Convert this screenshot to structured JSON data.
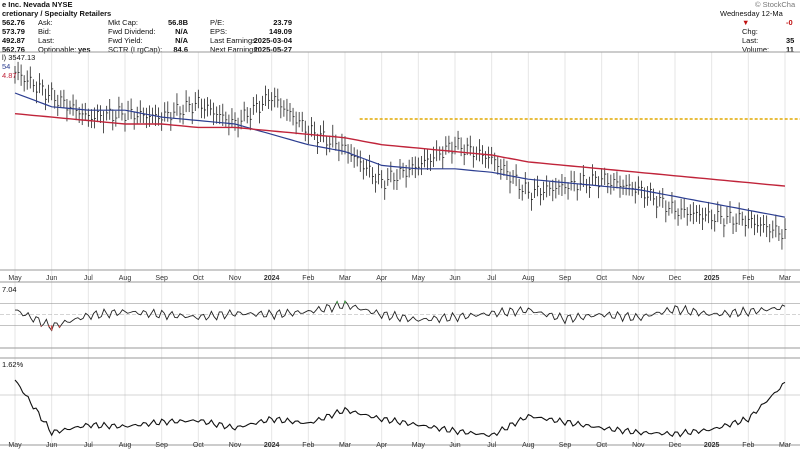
{
  "header": {
    "company_line": "e Inc.  Nevada  NYSE",
    "sector_line": "cretionary / Specialty Retailers",
    "left_values": [
      "562.76",
      "573.79",
      "492.87",
      "562.76"
    ],
    "left_labels": [
      "Ask:",
      "Bid:",
      "Last:",
      "Optionable:"
    ],
    "optionable": "yes",
    "mid_labels": [
      "Mkt Cap:",
      "Fwd Dividend:",
      "Fwd Yield:",
      "SCTR (LrgCap):"
    ],
    "mid_values": [
      "56.8B",
      "N/A",
      "N/A",
      "84.6"
    ],
    "right_labels": [
      "P/E:",
      "EPS:",
      "Last Earnings:",
      "Next Earnings:"
    ],
    "right_values": [
      "23.79",
      "149.09",
      "2025-03-04",
      "2025-05-27"
    ],
    "brand": "© StockCha",
    "date": "Wednesday 12-Ma",
    "change_value": "-0",
    "far_right_labels": [
      "Chg:",
      "Last:",
      "Volume:"
    ],
    "far_right_values": [
      "",
      "35",
      "11"
    ],
    "overlay_legend": [
      "l) 3547.13",
      "54",
      "4.87"
    ]
  },
  "colors": {
    "price": "#222222",
    "ma50": "#2c3e91",
    "ma200": "#c0243a",
    "resistance": "#e0a800",
    "overbought": "#4caf50",
    "oversold": "#d9534f",
    "grid": "#e6e6e6"
  },
  "x_axis_labels": [
    "May",
    "Jun",
    "Jul",
    "Aug",
    "Sep",
    "Oct",
    "Nov",
    "2024",
    "Feb",
    "Mar",
    "Apr",
    "May",
    "Jun",
    "Jul",
    "Aug",
    "Sep",
    "Oct",
    "Nov",
    "Dec",
    "2025",
    "Feb",
    "Mar"
  ],
  "chart_data": [
    {
      "type": "line",
      "panel": "price",
      "x": [
        "May",
        "Jun",
        "Jul",
        "Aug",
        "Sep",
        "Oct",
        "Nov",
        "2024",
        "Feb",
        "Mar",
        "Apr",
        "May",
        "Jun",
        "Jul",
        "Aug",
        "Sep",
        "Oct",
        "Nov",
        "Dec",
        "2025",
        "Feb",
        "Mar"
      ],
      "series": [
        {
          "values": [
            55,
            48,
            42,
            43,
            42,
            46,
            40,
            48,
            38,
            33,
            23,
            28,
            34,
            30,
            20,
            22,
            24,
            21,
            15,
            13,
            12,
            8
          ]
        },
        {
          "values": [
            49,
            45,
            44,
            44,
            42,
            41,
            40,
            37,
            34,
            32,
            28,
            27,
            27,
            26,
            24,
            23,
            22,
            21,
            19,
            17,
            15,
            13
          ]
        },
        {
          "values": [
            43,
            42,
            41,
            40,
            40,
            39,
            39,
            38,
            37,
            36,
            34,
            33,
            32,
            31,
            29,
            28,
            27,
            26,
            25,
            24,
            23,
            22
          ]
        }
      ],
      "annotations": [
        "horizontal resistance line"
      ]
    },
    {
      "type": "line",
      "panel": "oscillator",
      "x": [
        "May",
        "Jun",
        "Jul",
        "Aug",
        "Sep",
        "Oct",
        "Nov",
        "2024",
        "Feb",
        "Mar",
        "Apr",
        "May",
        "Jun",
        "Jul",
        "Aug",
        "Sep",
        "Oct",
        "Nov",
        "Dec",
        "2025",
        "Feb",
        "Mar"
      ],
      "legend": "7.04",
      "series": [
        {
          "values": [
            58,
            28,
            48,
            55,
            50,
            45,
            52,
            50,
            55,
            68,
            50,
            40,
            45,
            52,
            58,
            42,
            50,
            44,
            60,
            50,
            55,
            63
          ]
        }
      ]
    },
    {
      "type": "line",
      "panel": "relative-strength",
      "x": [
        "May",
        "Jun",
        "Jul",
        "Aug",
        "Sep",
        "Oct",
        "Nov",
        "2024",
        "Feb",
        "Mar",
        "Apr",
        "May",
        "Jun",
        "Jul",
        "Aug",
        "Sep",
        "Oct",
        "Nov",
        "Dec",
        "2025",
        "Feb",
        "Mar"
      ],
      "legend": "1.62%",
      "series": [
        {
          "values": [
            40,
            5,
            10,
            9,
            12,
            13,
            8,
            14,
            11,
            20,
            14,
            10,
            6,
            3,
            16,
            12,
            8,
            5,
            4,
            7,
            14,
            38
          ]
        }
      ]
    }
  ]
}
